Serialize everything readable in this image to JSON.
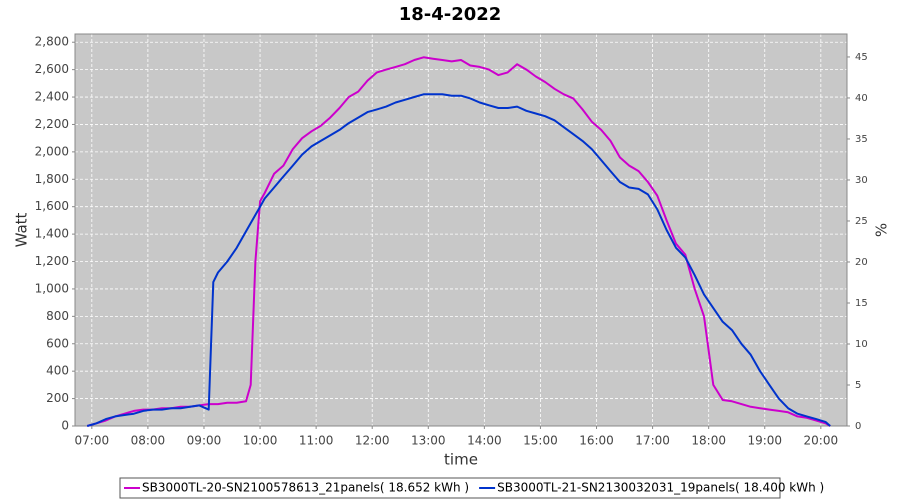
{
  "chart_data": {
    "type": "line",
    "title": "18-4-2022",
    "x_label": "time",
    "y_label": "Watt",
    "y2_label": "%",
    "x": [
      "06:55",
      "07:05",
      "07:15",
      "07:25",
      "07:35",
      "07:45",
      "07:55",
      "08:05",
      "08:15",
      "08:25",
      "08:35",
      "08:45",
      "08:55",
      "09:05",
      "09:10",
      "09:15",
      "09:25",
      "09:35",
      "09:45",
      "09:50",
      "09:55",
      "10:00",
      "10:05",
      "10:15",
      "10:25",
      "10:35",
      "10:45",
      "10:55",
      "11:05",
      "11:15",
      "11:25",
      "11:35",
      "11:45",
      "11:55",
      "12:05",
      "12:15",
      "12:25",
      "12:35",
      "12:45",
      "12:55",
      "13:05",
      "13:15",
      "13:25",
      "13:35",
      "13:45",
      "13:55",
      "14:05",
      "14:15",
      "14:25",
      "14:35",
      "14:45",
      "14:55",
      "15:05",
      "15:15",
      "15:25",
      "15:35",
      "15:45",
      "15:55",
      "16:05",
      "16:15",
      "16:25",
      "16:35",
      "16:45",
      "16:55",
      "17:05",
      "17:15",
      "17:25",
      "17:35",
      "17:45",
      "17:55",
      "18:05",
      "18:15",
      "18:25",
      "18:35",
      "18:45",
      "18:55",
      "19:05",
      "19:15",
      "19:25",
      "19:35",
      "19:45",
      "19:55",
      "20:05",
      "20:10"
    ],
    "series": [
      {
        "name": "SB3000TL-20-SN2100578613_21panels( 18.652 kWh )",
        "color": "#cc00cc",
        "values": [
          0,
          20,
          40,
          70,
          90,
          110,
          120,
          120,
          130,
          130,
          140,
          140,
          150,
          160,
          160,
          160,
          170,
          170,
          180,
          300,
          1200,
          1640,
          1700,
          1840,
          1900,
          2020,
          2100,
          2150,
          2190,
          2250,
          2320,
          2400,
          2440,
          2520,
          2580,
          2600,
          2620,
          2640,
          2670,
          2690,
          2680,
          2670,
          2660,
          2670,
          2630,
          2620,
          2600,
          2560,
          2580,
          2640,
          2600,
          2550,
          2510,
          2460,
          2420,
          2390,
          2310,
          2220,
          2160,
          2080,
          1960,
          1900,
          1860,
          1780,
          1680,
          1500,
          1330,
          1250,
          1000,
          800,
          300,
          190,
          180,
          160,
          140,
          130,
          120,
          110,
          100,
          70,
          60,
          40,
          20,
          0
        ]
      },
      {
        "name": "SB3000TL-21-SN2130032031_19panels( 18.400 kWh )",
        "color": "#0033cc",
        "values": [
          0,
          20,
          50,
          70,
          80,
          90,
          110,
          120,
          120,
          130,
          130,
          140,
          150,
          120,
          1050,
          1120,
          1200,
          1300,
          1420,
          1480,
          1540,
          1600,
          1660,
          1740,
          1820,
          1900,
          1980,
          2040,
          2080,
          2120,
          2160,
          2210,
          2250,
          2290,
          2310,
          2330,
          2360,
          2380,
          2400,
          2420,
          2420,
          2420,
          2410,
          2410,
          2390,
          2360,
          2340,
          2320,
          2320,
          2330,
          2300,
          2280,
          2260,
          2230,
          2180,
          2130,
          2080,
          2020,
          1940,
          1860,
          1780,
          1740,
          1730,
          1690,
          1580,
          1430,
          1300,
          1230,
          1100,
          960,
          860,
          760,
          700,
          600,
          520,
          400,
          300,
          200,
          130,
          90,
          70,
          50,
          30,
          0
        ]
      }
    ],
    "xlim": [
      "06:42",
      "20:28"
    ],
    "xticks": [
      "07:00",
      "08:00",
      "09:00",
      "10:00",
      "11:00",
      "12:00",
      "13:00",
      "14:00",
      "15:00",
      "16:00",
      "17:00",
      "18:00",
      "19:00",
      "20:00"
    ],
    "ylim": [
      0,
      2860
    ],
    "yticks": [
      0,
      200,
      400,
      600,
      800,
      {
        "value": 1000,
        "label": "1,000"
      },
      {
        "value": 1200,
        "label": "1,200"
      },
      {
        "value": 1400,
        "label": "1,400"
      },
      {
        "value": 1600,
        "label": "1,600"
      },
      {
        "value": 1800,
        "label": "1,800"
      },
      {
        "value": 2000,
        "label": "2,000"
      },
      {
        "value": 2200,
        "label": "2,200"
      },
      {
        "value": 2400,
        "label": "2,400"
      },
      {
        "value": 2600,
        "label": "2,600"
      },
      {
        "value": 2800,
        "label": "2,800"
      }
    ],
    "y2lim": [
      0,
      47.8
    ],
    "y2ticks": [
      0,
      5,
      10,
      15,
      20,
      25,
      30,
      35,
      40,
      45
    ],
    "grid": true,
    "legend": "bottom"
  }
}
